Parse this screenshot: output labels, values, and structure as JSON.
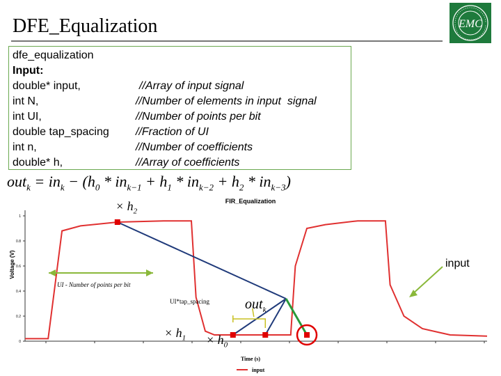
{
  "slide": {
    "title": "DFE_Equalization"
  },
  "logo": {
    "text": "EMC",
    "ring_text": "ENHANCED ELECTROMAGNETIC COMPATIBILITY"
  },
  "code": {
    "function_name": "dfe_equalization",
    "input_label": "Input:",
    "params": [
      {
        "decl": "double* input,",
        "comment": "//Array of input signal"
      },
      {
        "decl": "int N,",
        "comment": "//Number of elements in input  signal"
      },
      {
        "decl": "int UI,",
        "comment": "//Number of points per bit"
      },
      {
        "decl": "double tap_spacing",
        "comment": "//Fraction of UI"
      },
      {
        "decl": "int n,",
        "comment": "//Number of coefficients"
      },
      {
        "decl": "double* h,",
        "comment": "//Array of coefficients"
      }
    ]
  },
  "formula": {
    "lhs": "out",
    "lhs_sub": "k",
    "eq": " = in",
    "in_sub": "k",
    "minus": " − (h",
    "h0": "0",
    "t1": " * in",
    "s1": "k−1",
    "p1": " + h",
    "h1": "1",
    "t2": " * in",
    "s2": "k−2",
    "p2": " + h",
    "h2": "2",
    "t3": " * in",
    "s3": "k−3",
    "close": ")"
  },
  "annotations": {
    "input": "input",
    "ui_label": "UI - Number of points per bit",
    "tap_label": "UI*tap_spacing",
    "x_h2": "× h",
    "x_h2_sub": "2",
    "x_h1": "× h",
    "x_h1_sub": "1",
    "x_h0": "× h",
    "x_h0_sub": "0",
    "out": "out",
    "out_sub": "k"
  },
  "chart_data": {
    "type": "line",
    "title": "FIR_Equalization",
    "xlabel": "Time (s)",
    "ylabel": "Voltage (V)",
    "ylim": [
      0,
      1
    ],
    "yticks": [
      "0",
      "0.2",
      "0.4",
      "0.6",
      "0.8",
      "1"
    ],
    "legend": "input",
    "legend_position": "bottom",
    "series": [
      {
        "name": "input",
        "color": "#e03030",
        "x": [
          0,
          0.05,
          0.08,
          0.12,
          0.2,
          0.3,
          0.36,
          0.37,
          0.39,
          0.41,
          0.45,
          0.52,
          0.575,
          0.585,
          0.61,
          0.65,
          0.72,
          0.78,
          0.79,
          0.82,
          0.86,
          0.92,
          1.0
        ],
        "y": [
          0.02,
          0.02,
          0.88,
          0.92,
          0.95,
          0.96,
          0.96,
          0.35,
          0.08,
          0.05,
          0.05,
          0.05,
          0.05,
          0.6,
          0.9,
          0.93,
          0.96,
          0.96,
          0.45,
          0.2,
          0.1,
          0.05,
          0.04
        ]
      }
    ],
    "markers": [
      {
        "name": "h2",
        "x": 0.2,
        "y": 0.95
      },
      {
        "name": "h1",
        "x": 0.45,
        "y": 0.05
      },
      {
        "name": "h0",
        "x": 0.52,
        "y": 0.05
      },
      {
        "name": "out",
        "x": 0.61,
        "y": 0.05
      }
    ]
  }
}
